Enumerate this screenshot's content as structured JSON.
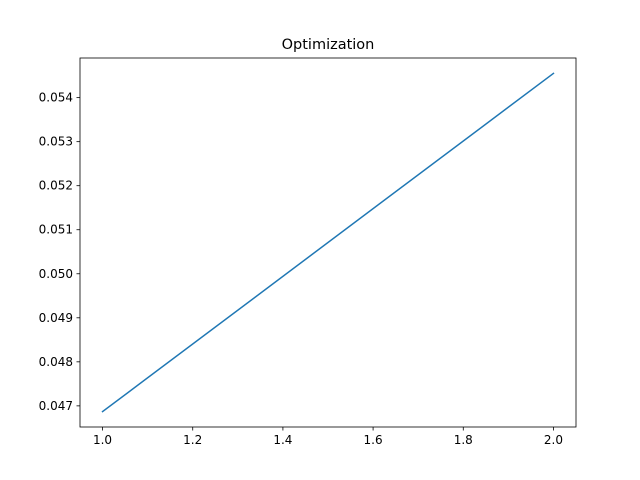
{
  "chart_data": {
    "type": "line",
    "title": "Optimization",
    "xlabel": "",
    "ylabel": "",
    "xlim": [
      0.95,
      2.05
    ],
    "ylim": [
      0.04652,
      0.0549
    ],
    "x_ticks": [
      1.0,
      1.2,
      1.4,
      1.6,
      1.8,
      2.0
    ],
    "x_tick_labels": [
      "1.0",
      "1.2",
      "1.4",
      "1.6",
      "1.8",
      "2.0"
    ],
    "y_ticks": [
      0.047,
      0.048,
      0.049,
      0.05,
      0.051,
      0.052,
      0.053,
      0.054
    ],
    "y_tick_labels": [
      "0.047",
      "0.048",
      "0.049",
      "0.050",
      "0.051",
      "0.052",
      "0.053",
      "0.054"
    ],
    "grid": false,
    "legend": "none",
    "series": [
      {
        "color": "#1f77b4",
        "x": [
          1.0,
          2.0
        ],
        "y": [
          0.04687,
          0.05455
        ]
      }
    ]
  }
}
